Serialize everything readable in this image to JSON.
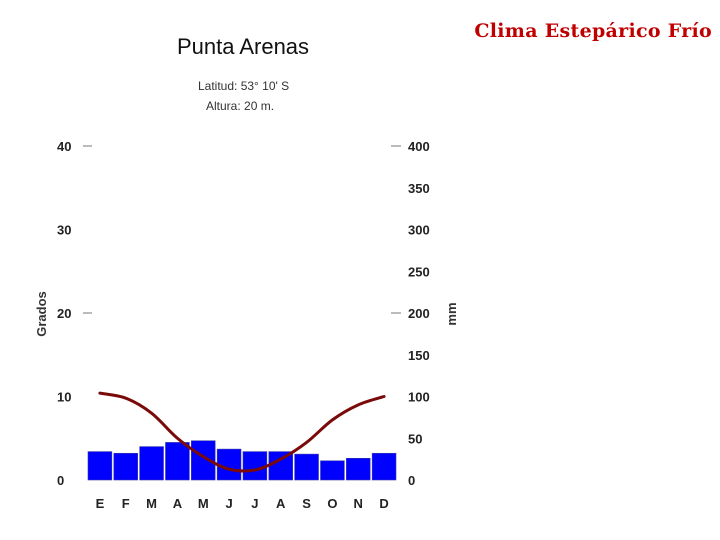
{
  "slide_title": "Clima Estepárico Frío",
  "chart_data": {
    "type": "bar",
    "title": "Punta Arenas",
    "subtitle_lines": [
      "Latitud: 53° 10' S",
      "Altura: 20 m."
    ],
    "categories": [
      "E",
      "F",
      "M",
      "A",
      "M",
      "J",
      "J",
      "A",
      "S",
      "O",
      "N",
      "D"
    ],
    "ylabel_left": "Grados",
    "ylabel_right": "mm",
    "ylim_left": [
      0,
      40
    ],
    "ylim_right": [
      0,
      400
    ],
    "yticks_left": [
      "0",
      "10",
      "20",
      "30",
      "40"
    ],
    "yticks_right": [
      "0",
      "50",
      "100",
      "150",
      "200",
      "250",
      "300",
      "350",
      "400"
    ],
    "grid": false,
    "series": [
      {
        "kind": "bar",
        "axis": "right",
        "color": "#0000ff",
        "values": [
          34,
          32,
          40,
          45,
          47,
          37,
          34,
          34,
          31,
          23,
          26,
          32
        ]
      },
      {
        "kind": "line",
        "axis": "left",
        "color": "#7a0a0a",
        "values": [
          10.4,
          9.8,
          8.0,
          5.0,
          2.8,
          1.3,
          1.2,
          2.5,
          4.5,
          7.2,
          9.0,
          10.0
        ]
      }
    ]
  }
}
